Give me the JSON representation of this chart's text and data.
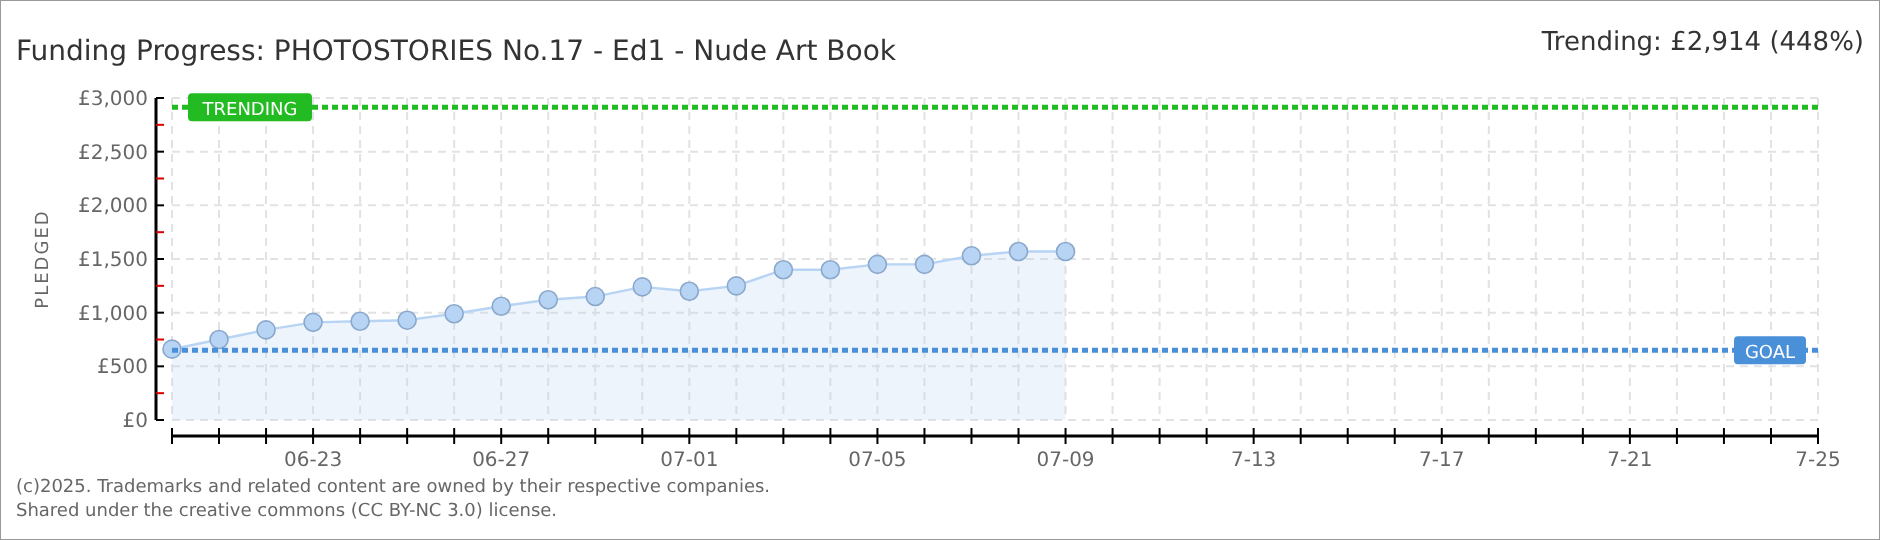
{
  "chart_data": {
    "type": "area",
    "title": "Funding Progress: PHOTOSTORIES No.17 - Ed1 - Nude Art Book",
    "ylabel": "PLEDGED",
    "annotations": [
      "Trending: £2,914 (448%)",
      "(c)2025. Trademarks and related content are owned by their respective companies.",
      "Shared under the creative commons (CC BY-NC 3.0) license."
    ],
    "x": [
      "2025-06-20",
      "2025-06-21",
      "2025-06-22",
      "2025-06-23",
      "2025-06-24",
      "2025-06-25",
      "2025-06-26",
      "2025-06-27",
      "2025-06-28",
      "2025-06-29",
      "2025-06-30",
      "2025-07-01",
      "2025-07-02",
      "2025-07-03",
      "2025-07-04",
      "2025-07-05",
      "2025-07-06",
      "2025-07-07",
      "2025-07-08",
      "2025-07-09"
    ],
    "series": [
      {
        "color": "#b8d4f4",
        "values": [
          660,
          750,
          840,
          910,
          920,
          930,
          990,
          1060,
          1120,
          1150,
          1240,
          1200,
          1250,
          1400,
          1400,
          1450,
          1450,
          1530,
          1570,
          1570
        ]
      }
    ],
    "marker": "circle",
    "grid": true,
    "xlim": [
      "2025-06-20",
      "2025-07-25"
    ],
    "xticks": [
      {
        "value": "2025-06-20",
        "label": null
      },
      {
        "value": "2025-06-21",
        "label": null
      },
      {
        "value": "2025-06-22",
        "label": null
      },
      {
        "value": "2025-06-23",
        "label": "06-23"
      },
      {
        "value": "2025-06-24",
        "label": null
      },
      {
        "value": "2025-06-25",
        "label": null
      },
      {
        "value": "2025-06-26",
        "label": null
      },
      {
        "value": "2025-06-27",
        "label": "06-27"
      },
      {
        "value": "2025-06-28",
        "label": null
      },
      {
        "value": "2025-06-29",
        "label": null
      },
      {
        "value": "2025-06-30",
        "label": null
      },
      {
        "value": "2025-07-01",
        "label": "07-01"
      },
      {
        "value": "2025-07-02",
        "label": null
      },
      {
        "value": "2025-07-03",
        "label": null
      },
      {
        "value": "2025-07-04",
        "label": null
      },
      {
        "value": "2025-07-05",
        "label": "07-05"
      },
      {
        "value": "2025-07-06",
        "label": null
      },
      {
        "value": "2025-07-07",
        "label": null
      },
      {
        "value": "2025-07-08",
        "label": null
      },
      {
        "value": "2025-07-09",
        "label": "07-09"
      },
      {
        "value": "2025-07-10",
        "label": null
      },
      {
        "value": "2025-07-11",
        "label": null
      },
      {
        "value": "2025-07-12",
        "label": null
      },
      {
        "value": "2025-07-13",
        "label": "7-13"
      },
      {
        "value": "2025-07-14",
        "label": null
      },
      {
        "value": "2025-07-15",
        "label": null
      },
      {
        "value": "2025-07-16",
        "label": null
      },
      {
        "value": "2025-07-17",
        "label": "7-17"
      },
      {
        "value": "2025-07-18",
        "label": null
      },
      {
        "value": "2025-07-19",
        "label": null
      },
      {
        "value": "2025-07-20",
        "label": null
      },
      {
        "value": "2025-07-21",
        "label": "7-21"
      },
      {
        "value": "2025-07-22",
        "label": null
      },
      {
        "value": "2025-07-23",
        "label": null
      },
      {
        "value": "2025-07-24",
        "label": null
      },
      {
        "value": "2025-07-25",
        "label": "7-25"
      }
    ],
    "ylim": [
      0,
      3000
    ],
    "yticks": [
      {
        "value": 0,
        "label": "£0"
      },
      {
        "value": 250,
        "label": null
      },
      {
        "value": 500,
        "label": "£500"
      },
      {
        "value": 750,
        "label": null
      },
      {
        "value": 1000,
        "label": "£1,000"
      },
      {
        "value": 1250,
        "label": null
      },
      {
        "value": 1500,
        "label": "£1,500"
      },
      {
        "value": 1750,
        "label": null
      },
      {
        "value": 2000,
        "label": "£2,000"
      },
      {
        "value": 2250,
        "label": null
      },
      {
        "value": 2500,
        "label": "£2,500"
      },
      {
        "value": 2750,
        "label": null
      },
      {
        "value": 3000,
        "label": "£3,000"
      }
    ],
    "ref_lines": [
      {
        "axis": "y",
        "value": 2914,
        "label": "TRENDING",
        "color": "#22bb22",
        "line_style": "dotted"
      },
      {
        "axis": "y",
        "value": 650,
        "label": "GOAL",
        "color": "#4a90d9",
        "line_style": "dotted"
      }
    ]
  }
}
